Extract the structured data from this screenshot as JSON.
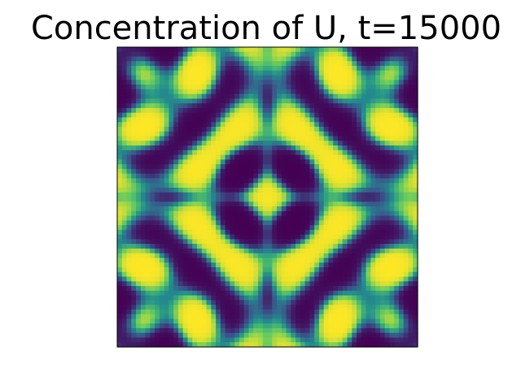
{
  "figure": {
    "title": "Concentration of U, t=15000"
  },
  "chart_data": {
    "type": "heatmap",
    "title": "Concentration of U, t=15000",
    "xlabel": "",
    "ylabel": "",
    "ticks_visible": false,
    "grid": false,
    "colormap": "viridis",
    "colormap_stops": [
      "#440154",
      "#3b528b",
      "#21908d",
      "#5dc963",
      "#fde725"
    ],
    "grid_resolution": 64,
    "value_range": [
      0,
      1
    ],
    "symmetry": "four-fold (mirror about both center lines)"
  }
}
